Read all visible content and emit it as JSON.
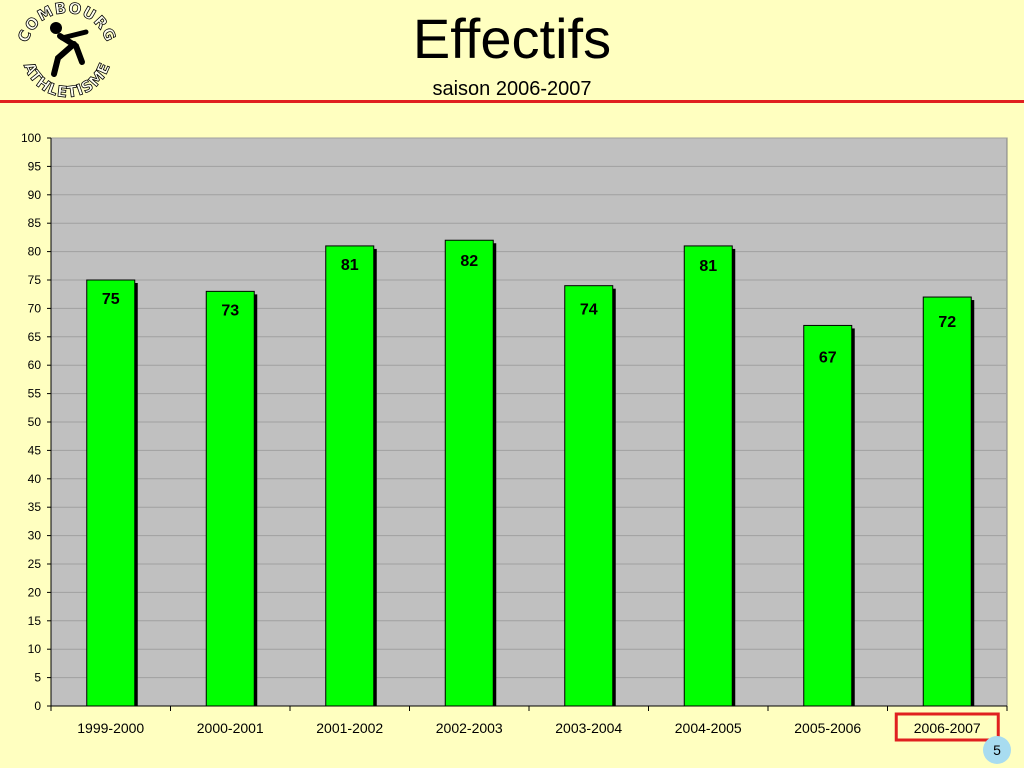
{
  "slide": {
    "title": "Effectifs",
    "subtitle": "saison 2006-2007",
    "page_number": "5",
    "logo_text": "COMBOURG ATHLETISME",
    "colors": {
      "background": "#ffffc0",
      "title_rule": "#e02020",
      "bar_fill": "#00ff00",
      "plot_area": "#c0c0c0",
      "highlight_box": "#e02020",
      "page_badge": "#a8dcf0"
    }
  },
  "chart_data": {
    "type": "bar",
    "categories": [
      "1999-2000",
      "2000-2001",
      "2001-2002",
      "2002-2003",
      "2003-2004",
      "2004-2005",
      "2005-2006",
      "2006-2007"
    ],
    "values": [
      75,
      73,
      81,
      82,
      74,
      81,
      67,
      72
    ],
    "data_labels": [
      "75",
      "73",
      "81",
      "82",
      "74",
      "81",
      "67",
      "72"
    ],
    "ylim": [
      0,
      100
    ],
    "y_ticks": [
      0,
      5,
      10,
      15,
      20,
      25,
      30,
      35,
      40,
      45,
      50,
      55,
      60,
      65,
      70,
      75,
      80,
      85,
      90,
      95,
      100
    ],
    "grid": true,
    "legend": "none",
    "highlighted_category": "2006-2007"
  }
}
